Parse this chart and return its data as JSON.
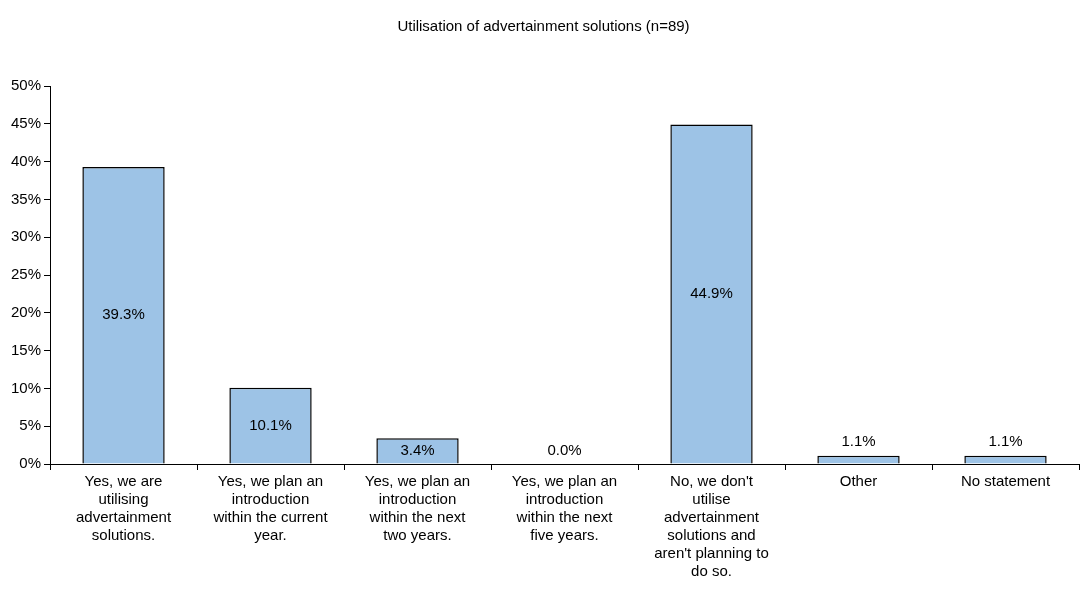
{
  "chart_data": {
    "type": "bar",
    "title": "Utilisation of advertainment solutions (n=89)",
    "categories": [
      "Yes, we are utilising advertainment solutions.",
      "Yes, we plan an introduction within the current year.",
      "Yes, we plan an introduction within the next two years.",
      "Yes, we plan an introduction within the next five years.",
      "No, we don't utilise advertainment solutions and aren't planning to do so.",
      "Other",
      "No statement"
    ],
    "values": [
      39.3,
      10.1,
      3.4,
      0.0,
      44.9,
      1.1,
      1.1
    ],
    "value_labels": [
      "39.3%",
      "10.1%",
      "3.4%",
      "0.0%",
      "44.9%",
      "1.1%",
      "1.1%"
    ],
    "color": "#9dc3e6",
    "ylim": [
      0,
      50
    ],
    "yticks": [
      {
        "value": 0,
        "label": "0%"
      },
      {
        "value": 5,
        "label": "5%"
      },
      {
        "value": 10,
        "label": "10%"
      },
      {
        "value": 15,
        "label": "15%"
      },
      {
        "value": 20,
        "label": "20%"
      },
      {
        "value": 25,
        "label": "25%"
      },
      {
        "value": 30,
        "label": "30%"
      },
      {
        "value": 35,
        "label": "35%"
      },
      {
        "value": 40,
        "label": "40%"
      },
      {
        "value": 45,
        "label": "45%"
      },
      {
        "value": 50,
        "label": "50%"
      }
    ],
    "grid": false,
    "legend": false
  }
}
